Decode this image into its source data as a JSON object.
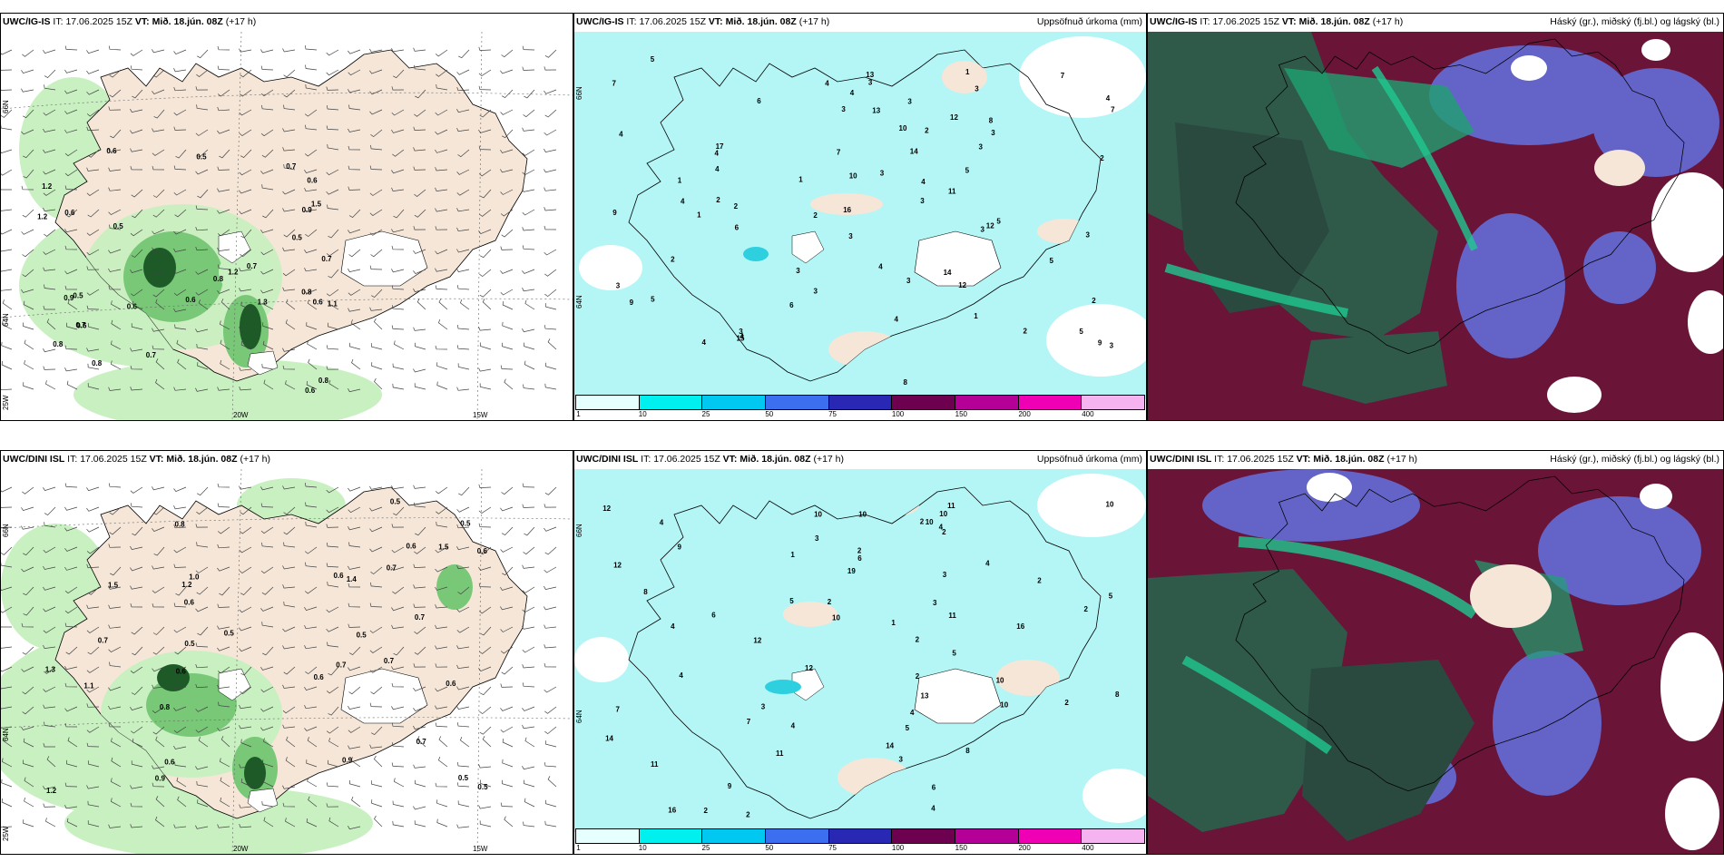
{
  "rows": [
    {
      "model": "UWC/IG-IS",
      "it_label": "IT:",
      "it_value": "17.06.2025 15Z",
      "vt_label": "VT:",
      "vt_value": "Mið. 18.jún. 08Z",
      "lead": "(+17 h)",
      "panel2_title": "Uppsöfnuð úrkoma (mm)",
      "panel3_title": "Háský (gr.), miðský (fj.bl.) og lágský (bl.)"
    },
    {
      "model": "UWC/DINI ISL",
      "it_label": "IT:",
      "it_value": "17.06.2025 15Z",
      "vt_label": "VT:",
      "vt_value": "Mið. 18.jún. 08Z",
      "lead": "(+17 h)",
      "panel2_title": "Uppsöfnuð úrkoma (mm)",
      "panel3_title": "Háský (gr.), miðský (fj.bl.) og lágský (bl.)"
    }
  ],
  "grid_labels": {
    "lon_20w": "20W",
    "lon_15w": "15W",
    "lat_66n": "66N",
    "lat_64n": "64N",
    "lat_25w": "25W"
  },
  "legend": {
    "ticks": [
      "1",
      "10",
      "25",
      "50",
      "75",
      "100",
      "150",
      "200",
      "400"
    ],
    "colors": [
      "#e6ffff",
      "#00f0f0",
      "#00c8f0",
      "#3c6ef0",
      "#2828b4",
      "#6e0050",
      "#b40096",
      "#f000b4",
      "#f5b4f0"
    ]
  },
  "colors": {
    "land": "#f5e6d8",
    "rain_light": "#c8f0c0",
    "rain_mid": "#78c878",
    "rain_dark": "#1e5a28",
    "precip_cyan": "#b4f5f5",
    "cloud_high": "#2f5a4a",
    "cloud_mid": "#6a1438",
    "cloud_low": "#6464c8"
  },
  "precip_top": [
    "3",
    "2",
    "3",
    "3",
    "4",
    "4",
    "4",
    "3",
    "4",
    "3",
    "4",
    "3",
    "13",
    "15",
    "7",
    "11",
    "10",
    "5",
    "6",
    "7",
    "3",
    "3",
    "4",
    "4",
    "3",
    "2",
    "7",
    "9",
    "5",
    "3",
    "3",
    "5",
    "16",
    "12",
    "6",
    "9",
    "14",
    "12",
    "17",
    "13",
    "7",
    "8",
    "10",
    "9",
    "1",
    "1",
    "4",
    "2",
    "12",
    "14",
    "3",
    "3",
    "5",
    "1",
    "2",
    "2",
    "3",
    "3",
    "2",
    "4",
    "5",
    "6",
    "4",
    "3",
    "1",
    "4",
    "8",
    "5",
    "4",
    "3",
    "2",
    "1",
    "2"
  ],
  "precip_bottom": [
    "2",
    "2",
    "2",
    "3",
    "4",
    "2",
    "3",
    "5",
    "4",
    "11",
    "10",
    "8",
    "12",
    "11",
    "10",
    "8",
    "6",
    "12",
    "10",
    "13",
    "9",
    "7",
    "5",
    "4",
    "9",
    "6",
    "4",
    "2",
    "10",
    "16",
    "19",
    "14",
    "10",
    "10",
    "8",
    "10",
    "11",
    "12",
    "7",
    "5",
    "4",
    "3",
    "2",
    "4",
    "16",
    "12",
    "14",
    "2",
    "2",
    "11",
    "10",
    "6",
    "2",
    "2",
    "1",
    "4",
    "3",
    "1",
    "2",
    "4",
    "3",
    "5"
  ],
  "rain_top": [
    "0.5",
    "0.6",
    "0.6",
    "0.7",
    "0.6",
    "0.7",
    "0.6",
    "0.6",
    "0.8",
    "0.6",
    "0.5",
    "0.8",
    "1.2",
    "1.2",
    "0.8",
    "0.6",
    "1.1",
    "0.9",
    "0.7",
    "0.5",
    "0.6",
    "0.7",
    "0.8",
    "1.3",
    "1.2",
    "0.8",
    "0.9",
    "1.5",
    "0.5",
    "0.7"
  ],
  "rain_bottom": [
    "0.5",
    "0.7",
    "0.6",
    "0.8",
    "0.6",
    "0.6",
    "0.5",
    "0.6",
    "0.5",
    "0.7",
    "0.9",
    "1.0",
    "1.2",
    "0.7",
    "1.4",
    "0.5",
    "1.1",
    "0.9",
    "0.8",
    "0.5",
    "0.6",
    "0.6",
    "0.7",
    "0.5",
    "1.3",
    "0.7",
    "0.5",
    "0.6",
    "1.2",
    "1.5",
    "1.5",
    "0.6",
    "0.7"
  ]
}
